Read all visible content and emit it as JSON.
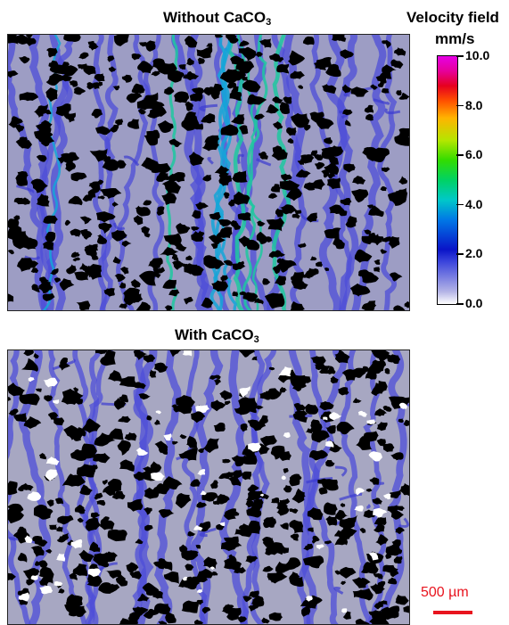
{
  "panels": {
    "top": {
      "title_main": "Without CaCO",
      "title_sub": "3"
    },
    "bottom": {
      "title_main": "With CaCO",
      "title_sub": "3"
    }
  },
  "colorbar": {
    "title_line1": "Velocity field",
    "title_line2": "mm/s",
    "ticks": [
      "10.0",
      "8.0",
      "6.0",
      "4.0",
      "2.0",
      "0.0"
    ],
    "min": 0.0,
    "max": 10.0
  },
  "scalebar": {
    "label": "500 µm",
    "color": "#e8141e"
  },
  "colors": {
    "pore_black": "#000000",
    "slow_flow": "#9d9dc4",
    "mid_flow": "#2a2ad6",
    "fast_flow": "#1ec8a0",
    "caco3": "#ffffff"
  }
}
